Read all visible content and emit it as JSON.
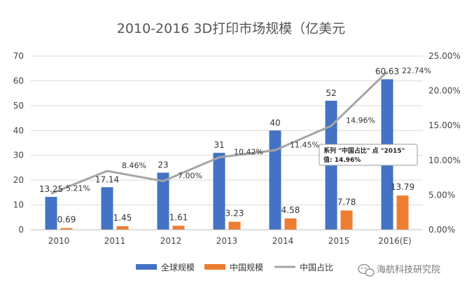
{
  "colors": {
    "global": "#4472c4",
    "china": "#ed7d31",
    "share": "#a5a5a5",
    "grid": "#d9d9d9"
  },
  "chart_data": {
    "type": "bar",
    "title": "2010-2016 3D打印市场规模（亿美元",
    "categories": [
      "2010",
      "2011",
      "2012",
      "2013",
      "2014",
      "2015",
      "2016(E)"
    ],
    "ylim": [
      0,
      70
    ],
    "yticks": [
      "0",
      "10",
      "20",
      "30",
      "40",
      "50",
      "60",
      "70"
    ],
    "y2lim": [
      0,
      0.25
    ],
    "y2ticks": [
      "0.00%",
      "5.00%",
      "10.00%",
      "15.00%",
      "20.00%",
      "25.00%"
    ],
    "grid": true,
    "legend_position": "bottom",
    "series": [
      {
        "name": "全球规模",
        "type": "bar",
        "axis": "left",
        "values": [
          13.25,
          17.14,
          23,
          31,
          40,
          52,
          60.63
        ],
        "labels": [
          "13.25",
          "17.14",
          "23",
          "31",
          "40",
          "52",
          "60.63"
        ]
      },
      {
        "name": "中国规模",
        "type": "bar",
        "axis": "left",
        "values": [
          0.69,
          1.45,
          1.61,
          3.23,
          4.58,
          7.78,
          13.79
        ],
        "labels": [
          "0.69",
          "1.45",
          "1.61",
          "3.23",
          "4.58",
          "7.78",
          "13.79"
        ]
      },
      {
        "name": "中国占比",
        "type": "line",
        "axis": "right",
        "values": [
          0.0521,
          0.0846,
          0.07,
          0.1042,
          0.1145,
          0.1496,
          0.2274
        ],
        "labels": [
          "5.21%",
          "8.46%",
          "7.00%",
          "10.42%",
          "11.45%",
          "14.96%",
          "22.74%"
        ]
      }
    ],
    "tooltip": {
      "line1": "系列 \"中国占比\" 点 \"2015\"",
      "line2": "值: 14.96%"
    }
  },
  "watermark": {
    "text": "海航科技研究院",
    "icon": "wechat-icon"
  }
}
